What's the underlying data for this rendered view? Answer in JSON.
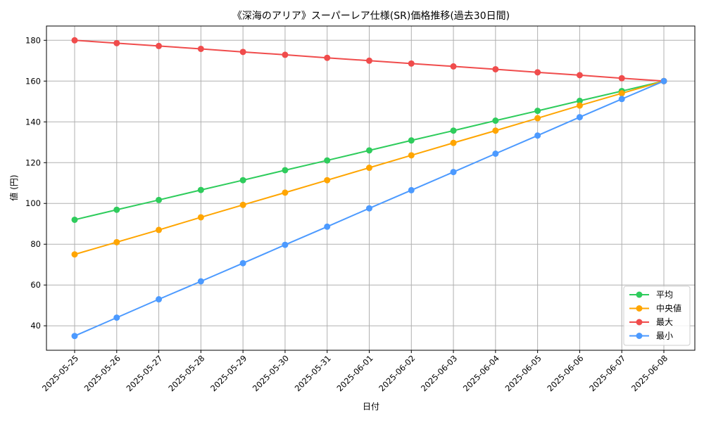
{
  "chart_data": {
    "type": "line",
    "title": "《深海のアリア》スーパーレア仕様(SR)価格推移(過去30日間)",
    "xlabel": "日付",
    "ylabel": "値 (円)",
    "ylim": [
      28,
      187
    ],
    "yticks": [
      40,
      60,
      80,
      100,
      120,
      140,
      160,
      180
    ],
    "grid": true,
    "legend_position": "bottom-right",
    "categories": [
      "2025-05-25",
      "2025-05-26",
      "2025-05-27",
      "2025-05-28",
      "2025-05-29",
      "2025-05-30",
      "2025-05-31",
      "2025-06-01",
      "2025-06-02",
      "2025-06-03",
      "2025-06-04",
      "2025-06-05",
      "2025-06-06",
      "2025-06-07",
      "2025-06-08"
    ],
    "series": [
      {
        "name": "平均",
        "color": "#2ecc5c",
        "values": [
          92.0,
          96.9,
          101.7,
          106.6,
          111.4,
          116.3,
          121.1,
          126.0,
          130.9,
          135.7,
          140.6,
          145.4,
          150.3,
          155.1,
          160.0
        ]
      },
      {
        "name": "中央値",
        "color": "#ffa500",
        "values": [
          75.0,
          81.0,
          87.0,
          93.2,
          99.3,
          105.3,
          111.4,
          117.5,
          123.6,
          129.7,
          135.7,
          141.8,
          148.0,
          154.0,
          160.0
        ]
      },
      {
        "name": "最大",
        "color": "#f04c4c",
        "values": [
          180.0,
          178.6,
          177.2,
          175.8,
          174.3,
          172.9,
          171.4,
          170.0,
          168.6,
          167.2,
          165.8,
          164.3,
          162.9,
          161.4,
          160.0
        ]
      },
      {
        "name": "最小",
        "color": "#4c9aff",
        "values": [
          35.0,
          44.0,
          53.0,
          61.8,
          70.7,
          79.7,
          88.6,
          97.6,
          106.5,
          115.4,
          124.4,
          133.3,
          142.3,
          151.2,
          160.0
        ]
      }
    ]
  }
}
